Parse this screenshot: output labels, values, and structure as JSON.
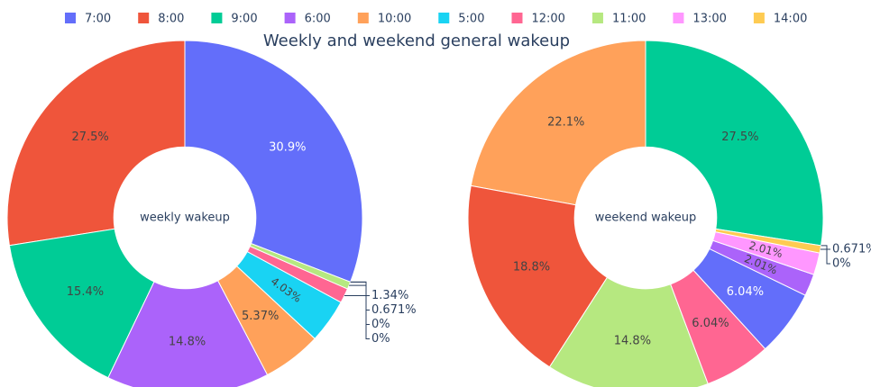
{
  "chart_data": [
    {
      "type": "pie",
      "title": "Weekly and weekend general wakeup",
      "center_label": "weekly wakeup",
      "hole": 0.4,
      "labels": [
        "7:00",
        "8:00",
        "9:00",
        "6:00",
        "10:00",
        "5:00",
        "12:00",
        "11:00",
        "13:00",
        "14:00"
      ],
      "values": [
        30.9,
        27.5,
        15.4,
        14.8,
        5.37,
        4.03,
        1.34,
        0.671,
        0,
        0
      ],
      "value_labels": [
        "30.9%",
        "27.5%",
        "15.4%",
        "14.8%",
        "5.37%",
        "4.03%",
        "1.34%",
        "0.671%",
        "0%",
        "0%"
      ],
      "colors": [
        "#636efa",
        "#EF553B",
        "#00cc96",
        "#ab63fa",
        "#FFA15A",
        "#19d3f3",
        "#FF6692",
        "#B6E880",
        "#FF97FF",
        "#FECB52"
      ]
    },
    {
      "type": "pie",
      "center_label": "weekend wakeup",
      "hole": 0.4,
      "labels": [
        "9:00",
        "10:00",
        "8:00",
        "11:00",
        "12:00",
        "7:00",
        "6:00",
        "13:00",
        "14:00",
        "5:00"
      ],
      "values": [
        27.5,
        22.1,
        18.8,
        14.8,
        6.04,
        6.04,
        2.01,
        2.01,
        0.671,
        0
      ],
      "value_labels": [
        "27.5%",
        "22.1%",
        "18.8%",
        "14.8%",
        "6.04%",
        "6.04%",
        "2.01%",
        "2.01%",
        "0.671%",
        "0%"
      ],
      "colors": [
        "#00cc96",
        "#FFA15A",
        "#EF553B",
        "#B6E880",
        "#FF6692",
        "#636efa",
        "#ab63fa",
        "#FF97FF",
        "#FECB52",
        "#19d3f3"
      ]
    }
  ]
}
